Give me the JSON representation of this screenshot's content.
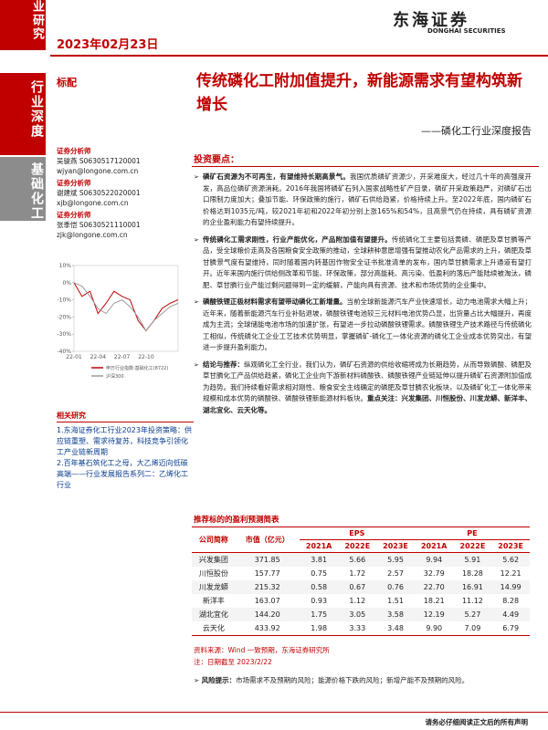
{
  "header": {
    "side_tab": "业研究",
    "date": "2023年02月23日",
    "logo_cn": "东海证券",
    "logo_en": "DONGHAI SECURITIES"
  },
  "sidebar": {
    "report_type": "行业深度",
    "industry": "基础化工"
  },
  "rating": "标配",
  "title": "传统磷化工附加值提升，新能源需求有望构筑新增长",
  "subtitle": "——磷化工行业深度报告",
  "analysts": [
    {
      "role": "证券分析师",
      "name": "吴骏燕 S0630517120001",
      "email": "wjyan@longone.com.cn"
    },
    {
      "role": "证券分析师",
      "name": "谢建斌 S0630522020001",
      "email": "xjb@longone.com.cn"
    },
    {
      "role": "证券分析师",
      "name": "张季恺 S0630521110001",
      "email": "zjk@longone.com.cn"
    }
  ],
  "stock_chart": {
    "type": "line",
    "categories": [
      "22-01",
      null,
      null,
      "22-04",
      null,
      null,
      "22-07",
      null,
      null,
      "22-10",
      null,
      null,
      null,
      null
    ],
    "series": [
      {
        "name": "申万行业指数:基础化工(8722)",
        "color": "#c00000",
        "values": [
          0,
          -8,
          -5,
          -18,
          -12,
          -5,
          -8,
          -10,
          -22,
          -28,
          -22,
          -15,
          -12,
          -10
        ]
      },
      {
        "name": "沪深300",
        "color": "#9a9a9a",
        "values": [
          0,
          -2,
          -8,
          -15,
          -18,
          -12,
          -10,
          -14,
          -20,
          -28,
          -22,
          -18,
          -14,
          -12
        ]
      }
    ],
    "ylim": [
      -40,
      10
    ],
    "yticks": [
      {
        "value": 10,
        "label": "10%"
      },
      {
        "value": 0,
        "label": "0%"
      },
      {
        "value": -10,
        "label": "-10%"
      },
      {
        "value": -20,
        "label": "-20%"
      },
      {
        "value": -30,
        "label": "-30%"
      },
      {
        "value": -40,
        "label": "-40%"
      }
    ]
  },
  "related": {
    "title": "相关研究",
    "items": [
      "1.东海证券化工行业2023年投资策略：供应链重塑、需求待复苏，科技竞争引领化工产业链新周期",
      "2.百年基石筑化工之母，大乙烯迈向低碳高端——行业发展报告系列二：乙烯化工行业"
    ]
  },
  "highlights": {
    "title": "投资要点：",
    "points": [
      {
        "lead": "磷矿石资源为不可再生，有望维持长期高景气。",
        "text": "我国优质磷矿资源少，开采难度大，经过几十年的高强度开发，高品位磷矿资源消耗。2016年我国将磷矿石列入国家战略性矿产目录，磷矿开采政策趋严，对磷矿石出口限制力度加大；叠加节能、环保政策的施行，磷矿石供给趋紧，价格持续上升。至2022年底，国内磷矿石价格达到1035元/吨，较2021年初和2022年初分别上涨165%和54%，且高景气仍在持续，具有磷矿资源的企业盈利能力有望持续提升。"
      },
      {
        "lead": "传统磷化工需求刚性，行业产能优化，产品附加值有望提升。",
        "text": "传统磷化工主要包括黄磷、磷肥及草甘膦等产品，受全球粮价走高及各国粮食安全政策的推动，全球耕种意愿增强有望推动农化产品需求的上升，磷肥及草甘膦景气度有望维持，同时随着国内转基因作物安全证书批准清单的发布，国内草甘膦需求上升通道有望打开。近年来国内施行供给侧改革和节能、环保政策，部分高能耗、高污染、低盈利的落后产能陆续被淘汰，磷肥、草甘膦行业产能过剩问题得到一定的缓解，产能向具有资源、技术和市场优势的企业集中。"
      },
      {
        "lead": "磷酸铁锂正极材料需求有望带动磷化工新增量。",
        "text": "当前全球新能源汽车产业快速增长，动力电池需求大幅上升；近年来，随着新能源汽车行业补贴退坡，磷酸铁锂电池较三元材料电池优势凸显，出货量占比大幅提升，再度成为主流；全球储能电池市场的加速扩张，有望进一步拉动磷酸铁锂需求。磷酸铁锂生产技术路径与传统磷化工相似，传统磷化工企业工艺技术优势明显，掌握磷矿-磷化工一体化资源的磷化工企业成本优势突出，有望进一步提升盈利能力。"
      },
      {
        "lead": "结论与推荐：",
        "text": "纵观磷化工全行业，我们认为，磷矿石资源的供给收缩将成为长期趋势，从而导致磷酸、磷肥及草甘膦化工产品供给趋紧，磷化工企业向下游新材料磷酸铁、磷酸铁锂产业链延伸以提升磷矿石资源附加值成为趋势。我们持续看好需求相对刚性、粮食安全主线确定的磷肥及草甘膦农化板块，以及磷矿化工一体化带来规模和成本优势的磷酸铁、磷酸铁锂新能源材料板块。",
        "tail": "重点关注：兴发集团、川恒股份、川发龙蟒、新洋丰、湖北宜化、云天化等。"
      }
    ]
  },
  "table": {
    "title": "推荐标的的盈利预测简表",
    "header": [
      "公司简称",
      "市值（亿元）",
      "EPS",
      "PE"
    ],
    "years": [
      "2021A",
      "2022E",
      "2023E",
      "2021A",
      "2022E",
      "2023E"
    ],
    "rows": [
      [
        "兴发集团",
        "371.85",
        "3.81",
        "5.66",
        "5.95",
        "9.94",
        "5.91",
        "5.62"
      ],
      [
        "川恒股份",
        "157.77",
        "0.75",
        "1.72",
        "2.57",
        "32.79",
        "18.28",
        "12.21"
      ],
      [
        "川发龙蟒",
        "215.32",
        "0.58",
        "0.67",
        "0.76",
        "22.70",
        "16.91",
        "14.99"
      ],
      [
        "新洋丰",
        "163.07",
        "0.93",
        "1.12",
        "1.51",
        "18.21",
        "11.12",
        "8.28"
      ],
      [
        "湖北宜化",
        "144.20",
        "1.75",
        "3.05",
        "3.58",
        "12.19",
        "5.27",
        "4.49"
      ],
      [
        "云天化",
        "433.92",
        "1.98",
        "3.33",
        "3.48",
        "9.90",
        "7.09",
        "6.79"
      ]
    ],
    "source": "资料来源：Wind 一致预期，东海证券研究所",
    "note": "注：日期截至 2023/2/22"
  },
  "risk": {
    "lead": "风险提示：",
    "text": "市场需求不及预期的风险；能源价格下跌的风险；新增产能不及预期的风险。"
  },
  "footer": "请务必仔细阅读正文后的所有声明"
}
